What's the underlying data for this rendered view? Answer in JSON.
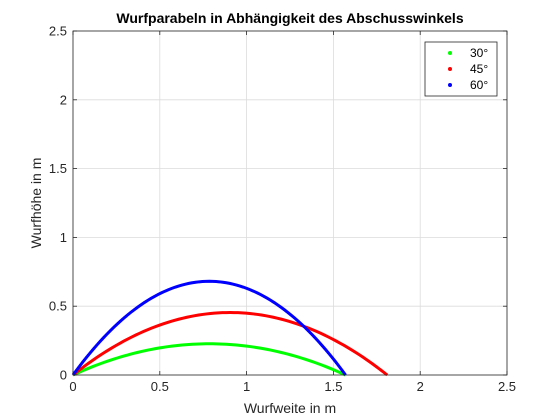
{
  "chart_data": {
    "type": "line",
    "title": "Wurfparabeln in Abhängigkeit des Abschusswinkels",
    "xlabel": "Wurfweite in m",
    "ylabel": "Wurfhöhe in m",
    "xlim": [
      0,
      2.5
    ],
    "ylim": [
      0,
      2.5
    ],
    "xticks": [
      0,
      0.5,
      1,
      1.5,
      2,
      2.5
    ],
    "yticks": [
      0,
      0.5,
      1,
      1.5,
      2,
      2.5
    ],
    "xtick_labels": [
      "0",
      "0.5",
      "1",
      "1.5",
      "2",
      "2.5"
    ],
    "ytick_labels": [
      "0",
      "0.5",
      "1",
      "1.5",
      "2",
      "2.5"
    ],
    "grid": true,
    "legend_position": "top-right",
    "series": [
      {
        "name": "30°",
        "color": "#00ff00",
        "x": [
          0,
          0.26,
          0.52,
          0.78,
          1.04,
          1.3,
          1.57
        ],
        "y": [
          0,
          0.124,
          0.199,
          0.227,
          0.208,
          0.142,
          0
        ]
      },
      {
        "name": "45°",
        "color": "#ff0000",
        "x": [
          0,
          0.3,
          0.6,
          0.91,
          1.21,
          1.51,
          1.81
        ],
        "y": [
          0,
          0.252,
          0.403,
          0.454,
          0.403,
          0.252,
          0
        ]
      },
      {
        "name": "60°",
        "color": "#0000ff",
        "x": [
          0,
          0.26,
          0.52,
          0.79,
          1.05,
          1.31,
          1.57
        ],
        "y": [
          0,
          0.379,
          0.605,
          0.681,
          0.605,
          0.379,
          0
        ]
      }
    ]
  }
}
